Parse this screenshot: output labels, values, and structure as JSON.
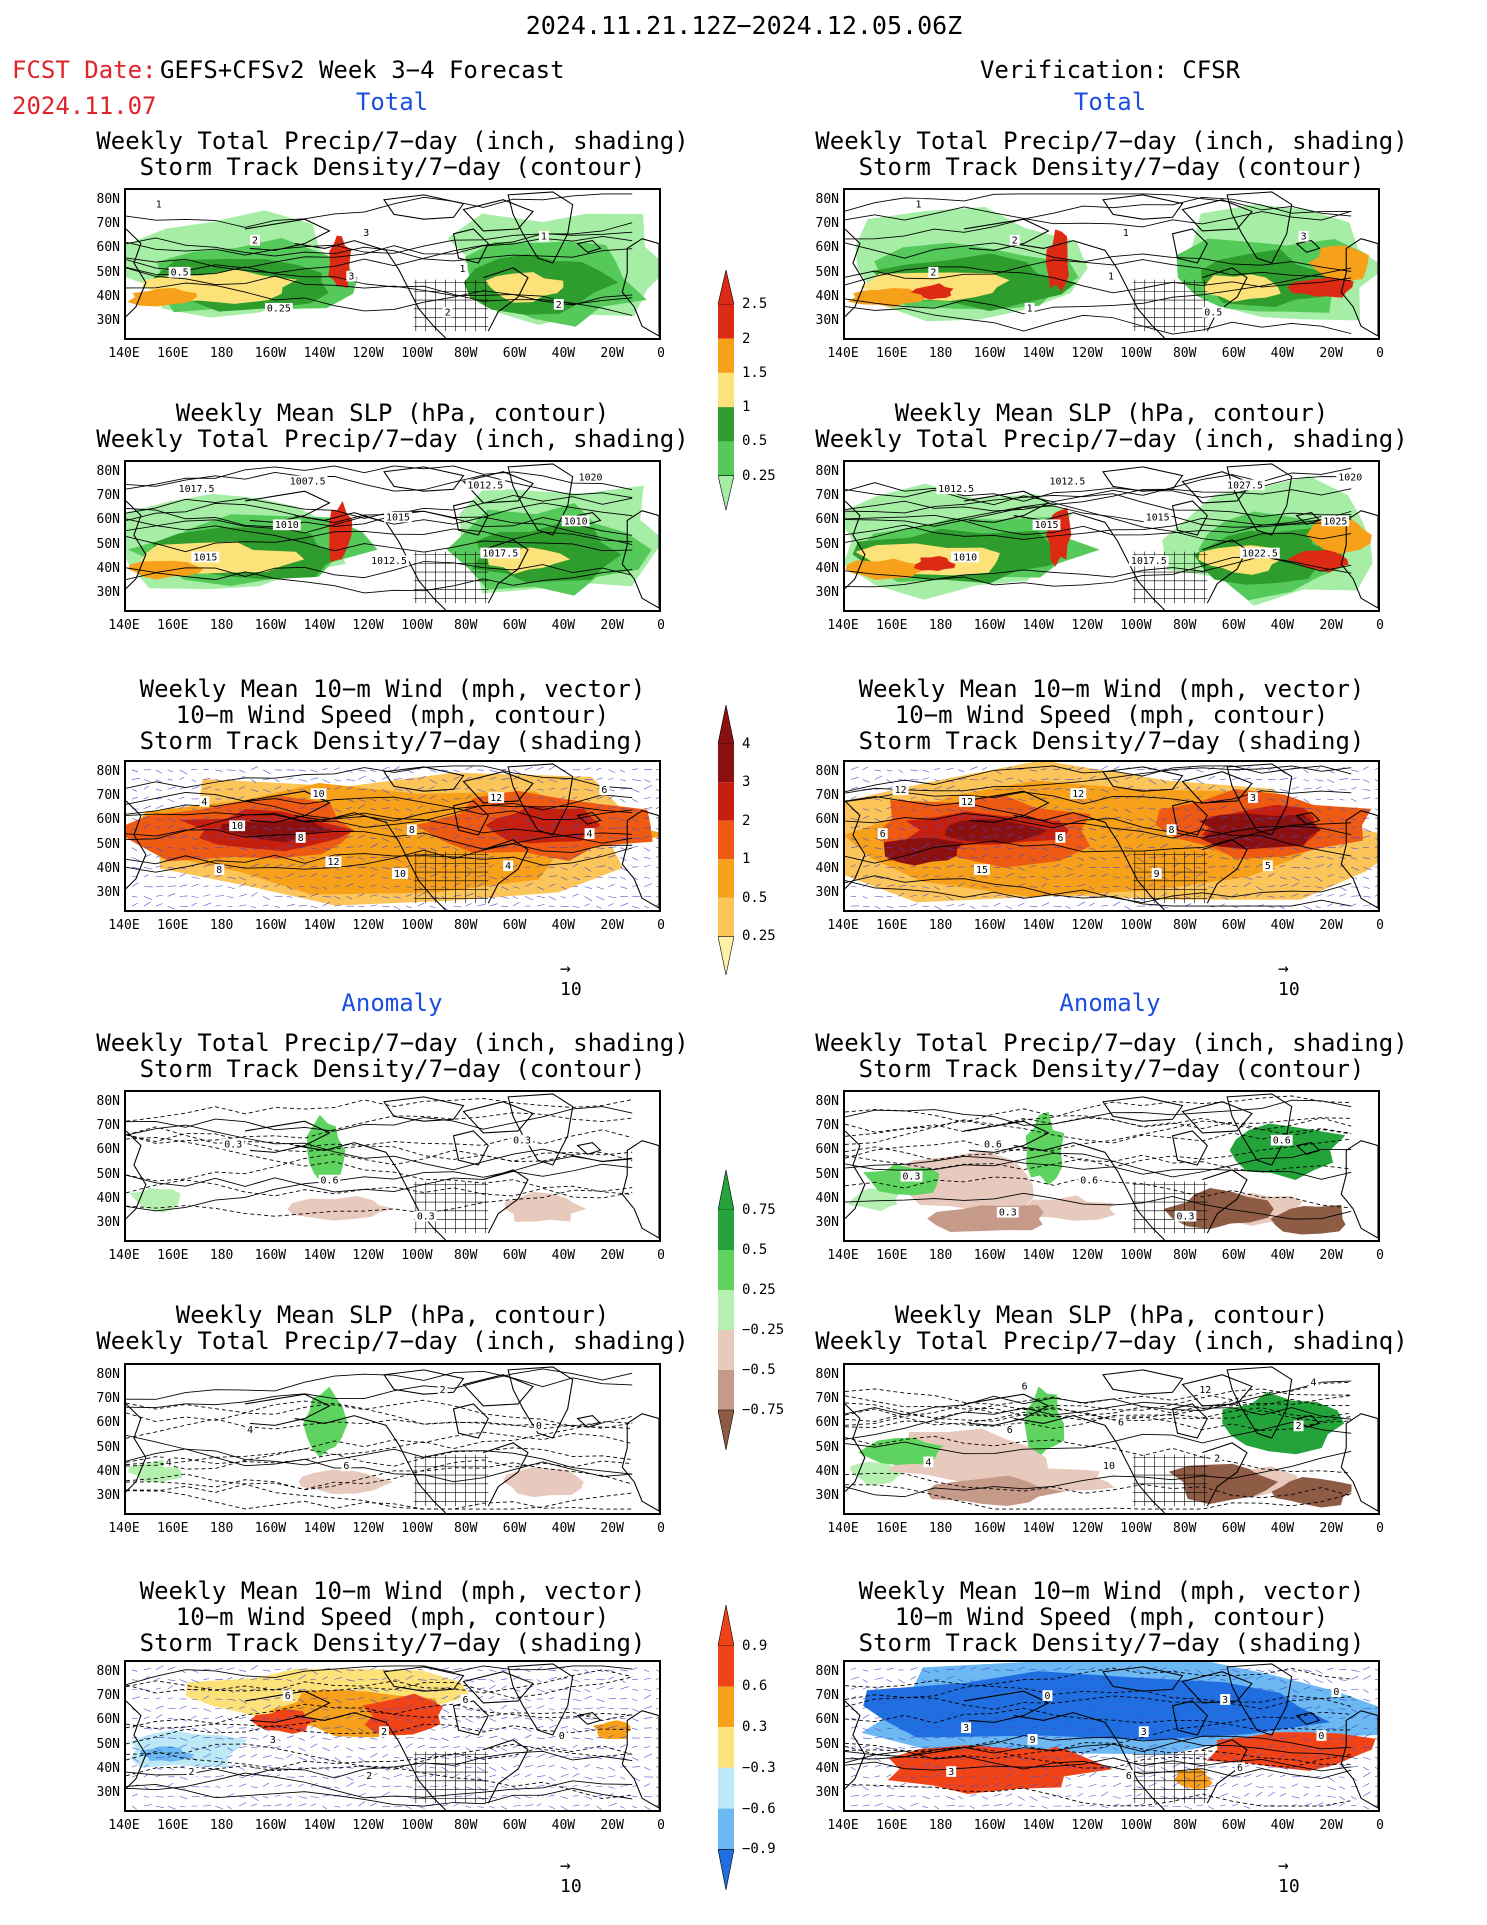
{
  "header": {
    "date_range": "2024.11.21.12Z−2024.12.05.06Z",
    "fcst_label": "FCST Date:",
    "fcst_date": "2024.11.07",
    "left_title": "GEFS+CFSv2 Week 3−4 Forecast",
    "right_title": "Verification: CFSR"
  },
  "sections": {
    "total": "Total",
    "anomaly": "Anomaly"
  },
  "panel_titles": {
    "precip_storm": [
      "Weekly Total Precip/7−day (inch, shading)",
      "Storm Track Density/7−day (contour)"
    ],
    "slp_precip": [
      "Weekly Mean SLP (hPa, contour)",
      "Weekly Total Precip/7−day (inch, shading)"
    ],
    "wind_storm": [
      "Weekly Mean 10−m Wind (mph, vector)",
      "10−m Wind Speed (mph, contour)",
      "Storm Track Density/7−day (shading)"
    ],
    "slp_precip_anom_right": [
      "Weekly Mean SLP (hPa, contour)",
      "Weekly Total Precip/7−day (inch, shadinq)"
    ]
  },
  "axes": {
    "lat_labels": [
      "80N",
      "70N",
      "60N",
      "50N",
      "40N",
      "30N"
    ],
    "lon_labels": [
      "140E",
      "160E",
      "180",
      "160W",
      "140W",
      "120W",
      "100W",
      "80W",
      "60W",
      "40W",
      "20W",
      "0"
    ]
  },
  "colorbars": {
    "precip_total": {
      "labels": [
        "2.5",
        "2",
        "1.5",
        "1",
        "0.5",
        "0.25"
      ],
      "colors": [
        "#dd2a14",
        "#f7a11a",
        "#fde27a",
        "#2e9d2e",
        "#55c95a",
        "#a6eea6"
      ]
    },
    "storm_total": {
      "labels": [
        "4",
        "3",
        "2",
        "1",
        "0.5",
        "0.25"
      ],
      "colors": [
        "#8b1010",
        "#c5200f",
        "#ee5a12",
        "#f7a11a",
        "#fcc55a",
        "#fef0a6"
      ]
    },
    "precip_anom": {
      "labels": [
        "0.75",
        "0.5",
        "0.25",
        "−0.25",
        "−0.5",
        "−0.75"
      ],
      "colors": [
        "#23a33a",
        "#5fd35f",
        "#b6f0b1",
        "#e7c9bd",
        "#c59a88",
        "#8e5b45"
      ]
    },
    "storm_anom": {
      "labels": [
        "0.9",
        "0.6",
        "0.3",
        "−0.3",
        "−0.6",
        "−0.9"
      ],
      "colors": [
        "#f04418",
        "#f7a11a",
        "#fde27a",
        "#bde9f7",
        "#6bb8f3",
        "#1f6fe0"
      ]
    }
  },
  "contour_labels": {
    "p1_left": [
      "1",
      "2",
      "3",
      "2",
      "1",
      "0.5",
      "0.25",
      "3",
      "1",
      "2"
    ],
    "p1_right": [
      "1",
      "2",
      "1",
      "0.5",
      "3",
      "2",
      "1",
      "1"
    ],
    "p2_left": [
      "1017.5",
      "1010",
      "1012.5",
      "1012.5",
      "1010",
      "1015",
      "1007.5",
      "1015",
      "1017.5",
      "1020"
    ],
    "p2_right": [
      "1012.5",
      "1015",
      "1017.5",
      "1027.5",
      "1025",
      "1010",
      "1012.5",
      "1015",
      "1022.5",
      "1020"
    ],
    "p3_left": [
      "4",
      "8",
      "10",
      "12",
      "4",
      "8",
      "10",
      "8",
      "4",
      "6",
      "10",
      "12"
    ],
    "p3_right": [
      "12",
      "6",
      "9",
      "3",
      "6",
      "15",
      "12",
      "8",
      "5",
      "12"
    ],
    "p4_left": [
      "0.3",
      "0.6",
      "0.3",
      "0.3"
    ],
    "p4_right": [
      "0.6",
      "0.6",
      "0.3",
      "0.6",
      "0.3",
      "0.3"
    ],
    "p5_left": [
      "4",
      "6",
      "2",
      "0",
      "4"
    ],
    "p5_right": [
      "6",
      "10",
      "12",
      "2",
      "4",
      "6",
      "6",
      "2",
      "4"
    ],
    "p6_left": [
      "3",
      "2",
      "6",
      "0",
      "2",
      "6",
      "2"
    ],
    "p6_right": [
      "9",
      "6",
      "3",
      "0",
      "3",
      "0",
      "3",
      "6",
      "0",
      "3"
    ]
  },
  "vector_ref": "10"
}
